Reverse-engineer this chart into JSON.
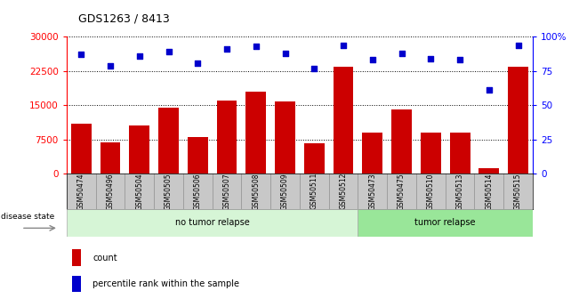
{
  "title": "GDS1263 / 8413",
  "samples": [
    "GSM50474",
    "GSM50496",
    "GSM50504",
    "GSM50505",
    "GSM50506",
    "GSM50507",
    "GSM50508",
    "GSM50509",
    "GSM50511",
    "GSM50512",
    "GSM50473",
    "GSM50475",
    "GSM50510",
    "GSM50513",
    "GSM50514",
    "GSM50515"
  ],
  "counts": [
    11000,
    6800,
    10500,
    14500,
    8000,
    16000,
    18000,
    15800,
    6700,
    23500,
    9000,
    14000,
    9000,
    9000,
    1200,
    23500
  ],
  "percentile_ranks": [
    87,
    79,
    86,
    89,
    81,
    91,
    93,
    88,
    77,
    94,
    83,
    88,
    84,
    83,
    61,
    94
  ],
  "group_labels": [
    "no tumor relapse",
    "tumor relapse"
  ],
  "group_sizes": [
    10,
    6
  ],
  "group_colors_light": [
    "#d6f5d6",
    "#99e699"
  ],
  "bar_color": "#cc0000",
  "dot_color": "#0000cc",
  "ylim_left": [
    0,
    30000
  ],
  "ylim_right": [
    0,
    100
  ],
  "yticks_left": [
    0,
    7500,
    15000,
    22500,
    30000
  ],
  "yticks_right": [
    0,
    25,
    50,
    75,
    100
  ],
  "legend_items": [
    "count",
    "percentile rank within the sample"
  ],
  "disease_state_label": "disease state",
  "background_color": "#ffffff",
  "bar_width": 0.7,
  "xtick_bg_color": "#c8c8c8"
}
